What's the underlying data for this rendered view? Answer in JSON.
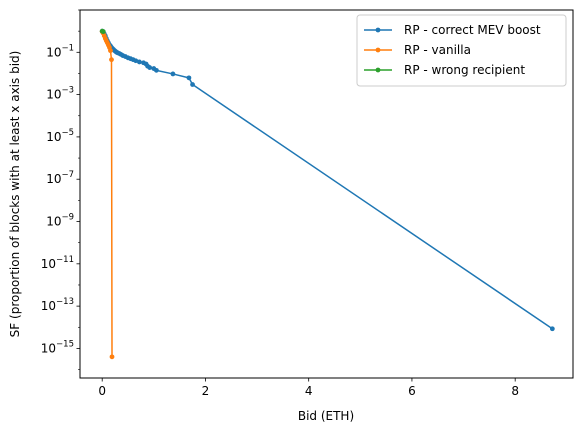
{
  "chart_data": {
    "type": "line",
    "xlabel": "Bid (ETH)",
    "ylabel": "SF (proportion of blocks with at least x axis bid)",
    "yscale": "log",
    "xlim": [
      -0.43,
      9.12
    ],
    "ylim": [
      4e-17,
      10
    ],
    "xticks": [
      0,
      2,
      4,
      6,
      8
    ],
    "yticks": [
      {
        "base": "10",
        "exp": "−1",
        "value": 0.1
      },
      {
        "base": "10",
        "exp": "−3",
        "value": 0.001
      },
      {
        "base": "10",
        "exp": "−5",
        "value": 1e-05
      },
      {
        "base": "10",
        "exp": "−7",
        "value": 1e-07
      },
      {
        "base": "10",
        "exp": "−9",
        "value": 1e-09
      },
      {
        "base": "10",
        "exp": "−11",
        "value": 1e-11
      },
      {
        "base": "10",
        "exp": "−13",
        "value": 1e-13
      },
      {
        "base": "10",
        "exp": "−15",
        "value": 1e-15
      }
    ],
    "grid": false,
    "legend_position": "top-right",
    "series": [
      {
        "name": "RP - correct MEV boost",
        "color": "#1f77b4",
        "points": [
          [
            0.0,
            1.0
          ],
          [
            0.02,
            0.95
          ],
          [
            0.04,
            0.75
          ],
          [
            0.06,
            0.6
          ],
          [
            0.08,
            0.45
          ],
          [
            0.1,
            0.35
          ],
          [
            0.12,
            0.28
          ],
          [
            0.14,
            0.23
          ],
          [
            0.16,
            0.2
          ],
          [
            0.18,
            0.17
          ],
          [
            0.2,
            0.15
          ],
          [
            0.22,
            0.135
          ],
          [
            0.24,
            0.12
          ],
          [
            0.26,
            0.11
          ],
          [
            0.28,
            0.1
          ],
          [
            0.3,
            0.095
          ],
          [
            0.33,
            0.088
          ],
          [
            0.36,
            0.08
          ],
          [
            0.4,
            0.07
          ],
          [
            0.45,
            0.063
          ],
          [
            0.5,
            0.055
          ],
          [
            0.55,
            0.05
          ],
          [
            0.6,
            0.045
          ],
          [
            0.65,
            0.04
          ],
          [
            0.72,
            0.035
          ],
          [
            0.8,
            0.032
          ],
          [
            0.85,
            0.028
          ],
          [
            0.88,
            0.022
          ],
          [
            0.92,
            0.019
          ],
          [
            1.0,
            0.017
          ],
          [
            1.05,
            0.014
          ],
          [
            1.37,
            0.0095
          ],
          [
            1.68,
            0.0062
          ],
          [
            1.75,
            0.003
          ],
          [
            8.72,
            8.5e-15
          ]
        ]
      },
      {
        "name": "RP - vanilla",
        "color": "#ff7f0e",
        "points": [
          [
            0.0,
            0.95
          ],
          [
            0.02,
            0.8
          ],
          [
            0.04,
            0.6
          ],
          [
            0.06,
            0.45
          ],
          [
            0.08,
            0.35
          ],
          [
            0.1,
            0.28
          ],
          [
            0.12,
            0.22
          ],
          [
            0.14,
            0.17
          ],
          [
            0.16,
            0.12
          ],
          [
            0.18,
            0.045
          ],
          [
            0.19,
            4e-16
          ]
        ]
      },
      {
        "name": "RP - wrong recipient",
        "color": "#2ca02c",
        "points": [
          [
            0.0,
            1.0
          ],
          [
            0.02,
            0.95
          ]
        ]
      }
    ]
  }
}
